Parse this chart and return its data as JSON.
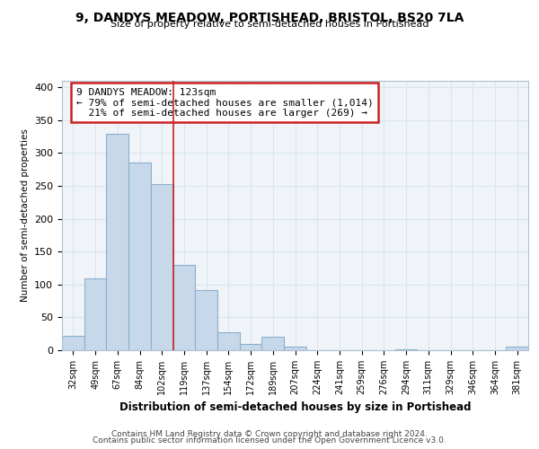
{
  "title1": "9, DANDYS MEADOW, PORTISHEAD, BRISTOL, BS20 7LA",
  "title2": "Size of property relative to semi-detached houses in Portishead",
  "xlabel": "Distribution of semi-detached houses by size in Portishead",
  "ylabel": "Number of semi-detached properties",
  "footer1": "Contains HM Land Registry data © Crown copyright and database right 2024.",
  "footer2": "Contains public sector information licensed under the Open Government Licence v3.0.",
  "annotation_line1": "9 DANDYS MEADOW: 123sqm",
  "annotation_line2": "← 79% of semi-detached houses are smaller (1,014)",
  "annotation_line3": "  21% of semi-detached houses are larger (269) →",
  "categories": [
    "32sqm",
    "49sqm",
    "67sqm",
    "84sqm",
    "102sqm",
    "119sqm",
    "137sqm",
    "154sqm",
    "172sqm",
    "189sqm",
    "207sqm",
    "224sqm",
    "241sqm",
    "259sqm",
    "276sqm",
    "294sqm",
    "311sqm",
    "329sqm",
    "346sqm",
    "364sqm",
    "381sqm"
  ],
  "values": [
    22,
    110,
    330,
    285,
    253,
    130,
    92,
    27,
    10,
    20,
    6,
    0,
    0,
    0,
    0,
    1,
    0,
    0,
    0,
    0,
    5
  ],
  "bar_color": "#c8d8eb",
  "bar_edgecolor": "#8ab0cc",
  "subject_bar_index": 5,
  "redline_color": "#cc2222",
  "annotation_box_facecolor": "#ffffff",
  "annotation_box_edgecolor": "#cc2222",
  "grid_color": "#d8e4f0",
  "bg_color": "#f0f4f8",
  "ylim": [
    0,
    410
  ],
  "yticks": [
    0,
    50,
    100,
    150,
    200,
    250,
    300,
    350,
    400
  ]
}
